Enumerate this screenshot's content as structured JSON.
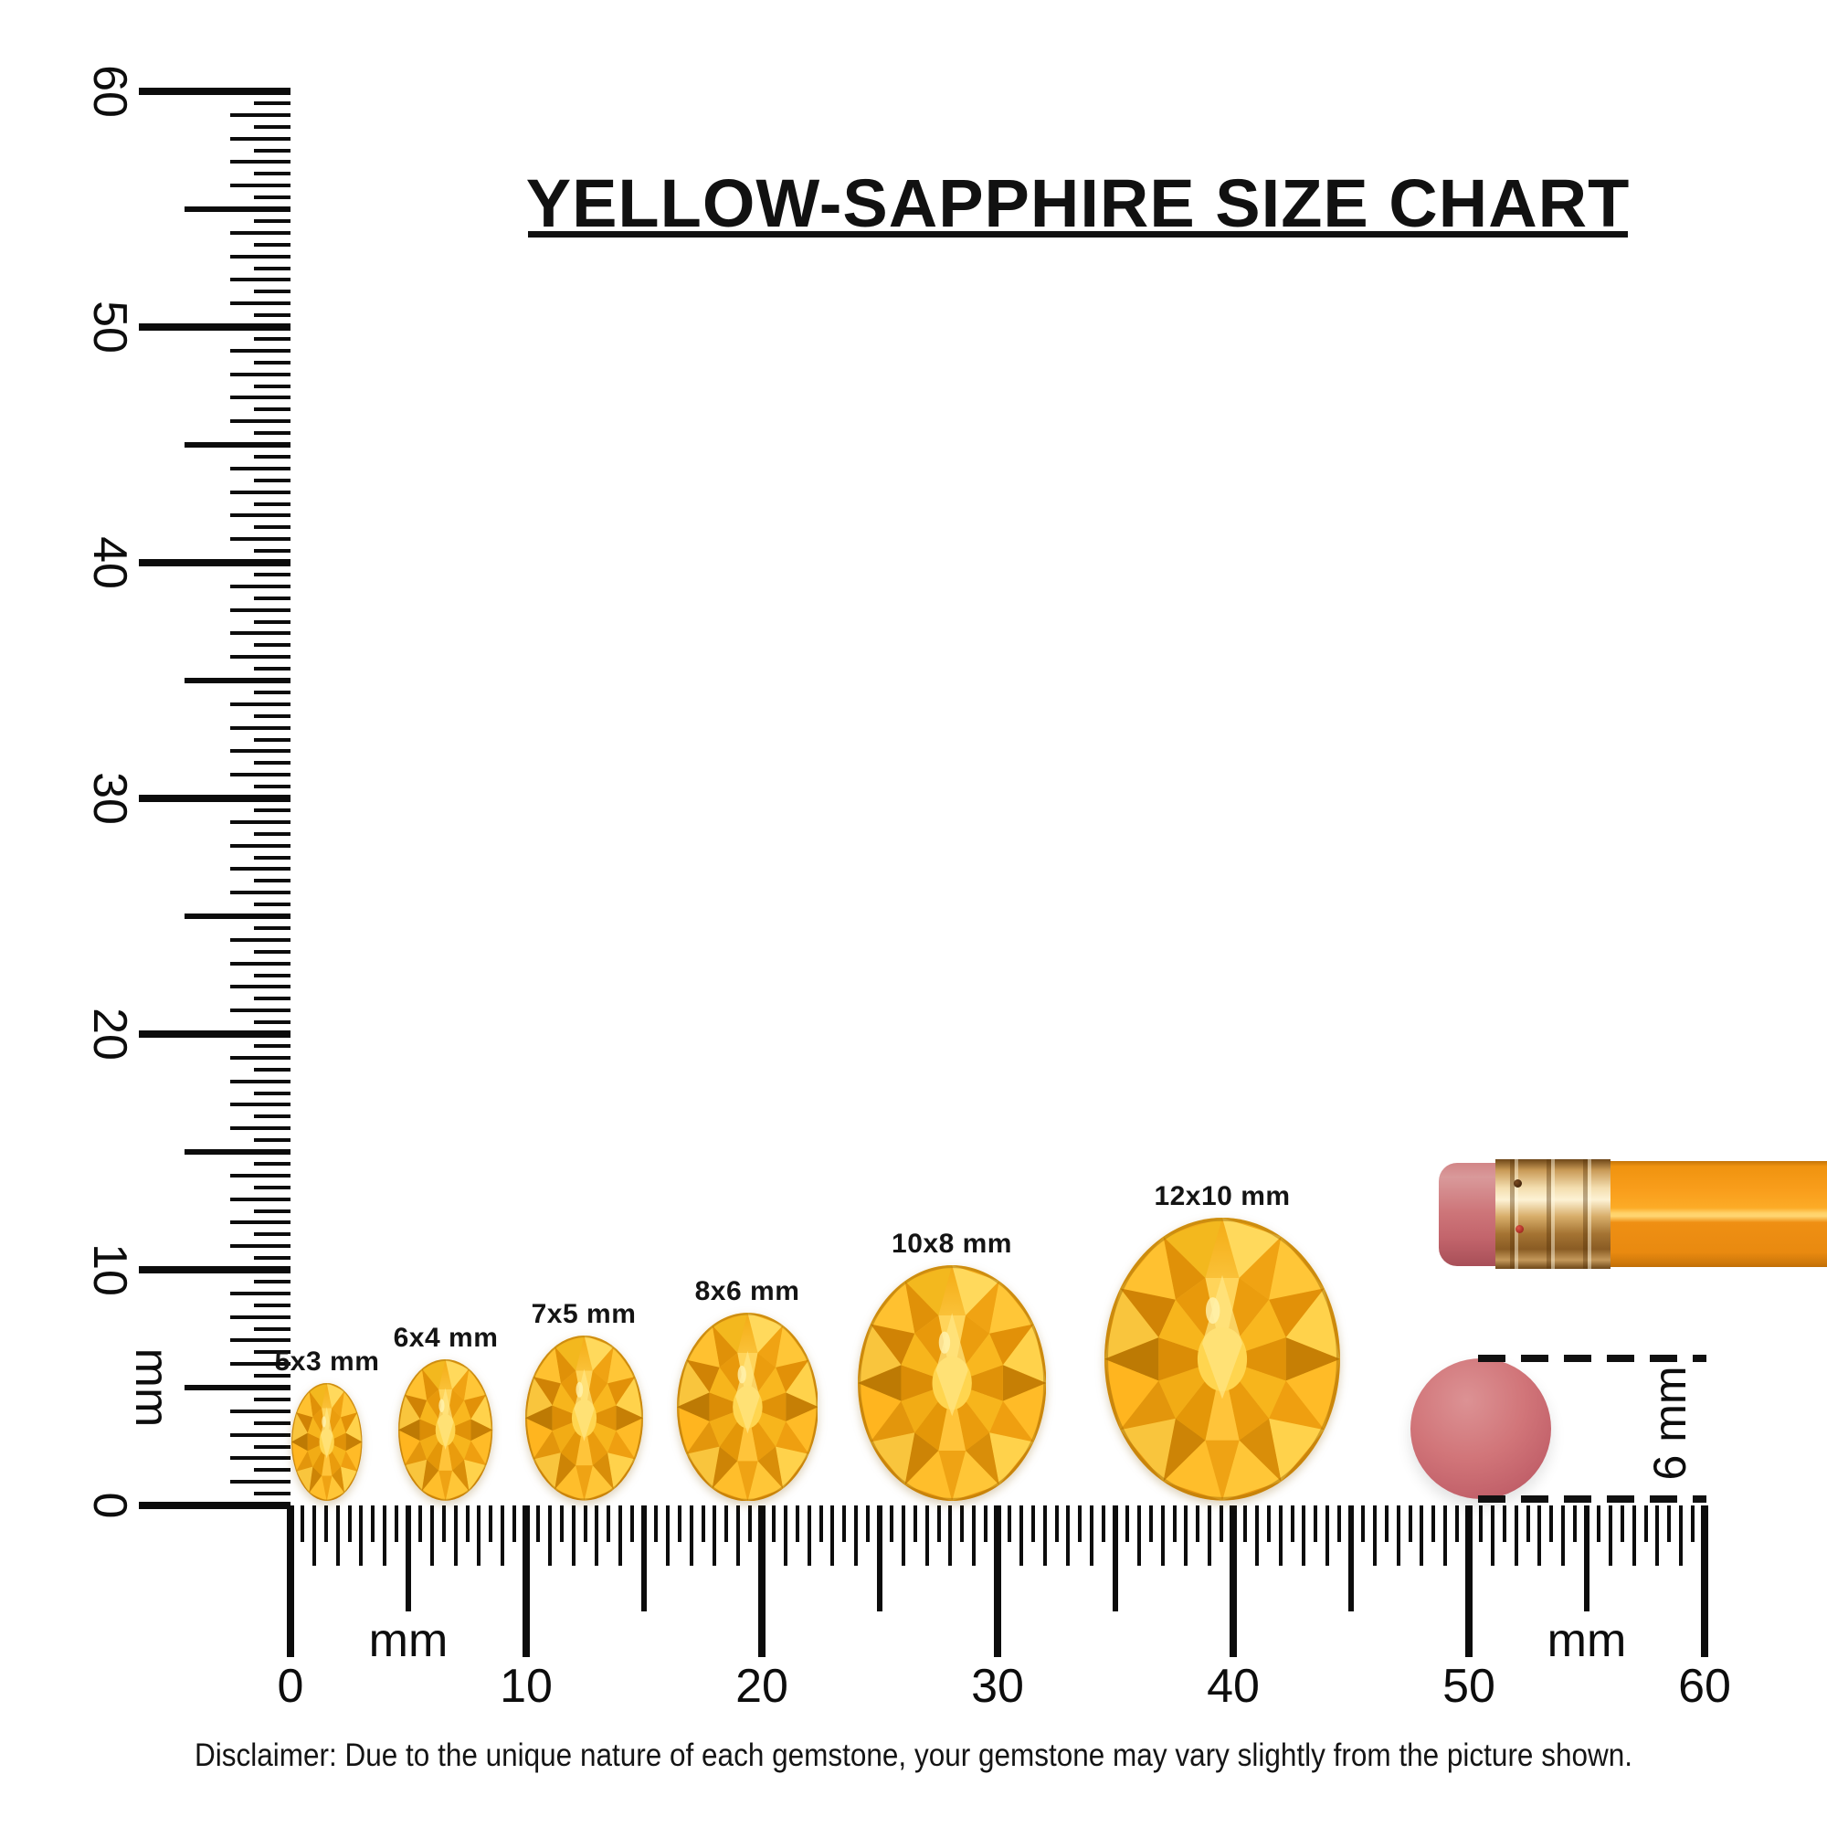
{
  "title": "YELLOW-SAPPHIRE SIZE CHART",
  "rulers": {
    "unit": "mm",
    "vertical": {
      "labels": [
        "0",
        "10",
        "20",
        "30",
        "40",
        "50",
        "60"
      ],
      "unit_label": "mm"
    },
    "horizontal": {
      "labels": [
        "0",
        "10",
        "20",
        "30",
        "40",
        "50",
        "60"
      ],
      "unit_label_left": "mm",
      "unit_label_right": "mm"
    }
  },
  "gems": [
    {
      "label": "5x3 mm",
      "width_mm": 3,
      "height_mm": 5
    },
    {
      "label": "6x4 mm",
      "width_mm": 4,
      "height_mm": 6
    },
    {
      "label": "7x5 mm",
      "width_mm": 5,
      "height_mm": 7
    },
    {
      "label": "8x6 mm",
      "width_mm": 6,
      "height_mm": 8
    },
    {
      "label": "10x8 mm",
      "width_mm": 8,
      "height_mm": 10
    },
    {
      "label": "12x10 mm",
      "width_mm": 10,
      "height_mm": 12
    }
  ],
  "eraser_comparison": {
    "label": "6 mm",
    "diameter_mm": 6
  },
  "disclaimer": "Disclaimer: Due to the unique nature of each gemstone, your gemstone may vary slightly from the picture shown.",
  "colors": {
    "ink": "#0d0d0d",
    "gem_gold": "#f6b21e",
    "eraser_pink": "#cf7175",
    "ferrule_gold": "#d4a968",
    "pencil_orange": "#f89c1b"
  }
}
